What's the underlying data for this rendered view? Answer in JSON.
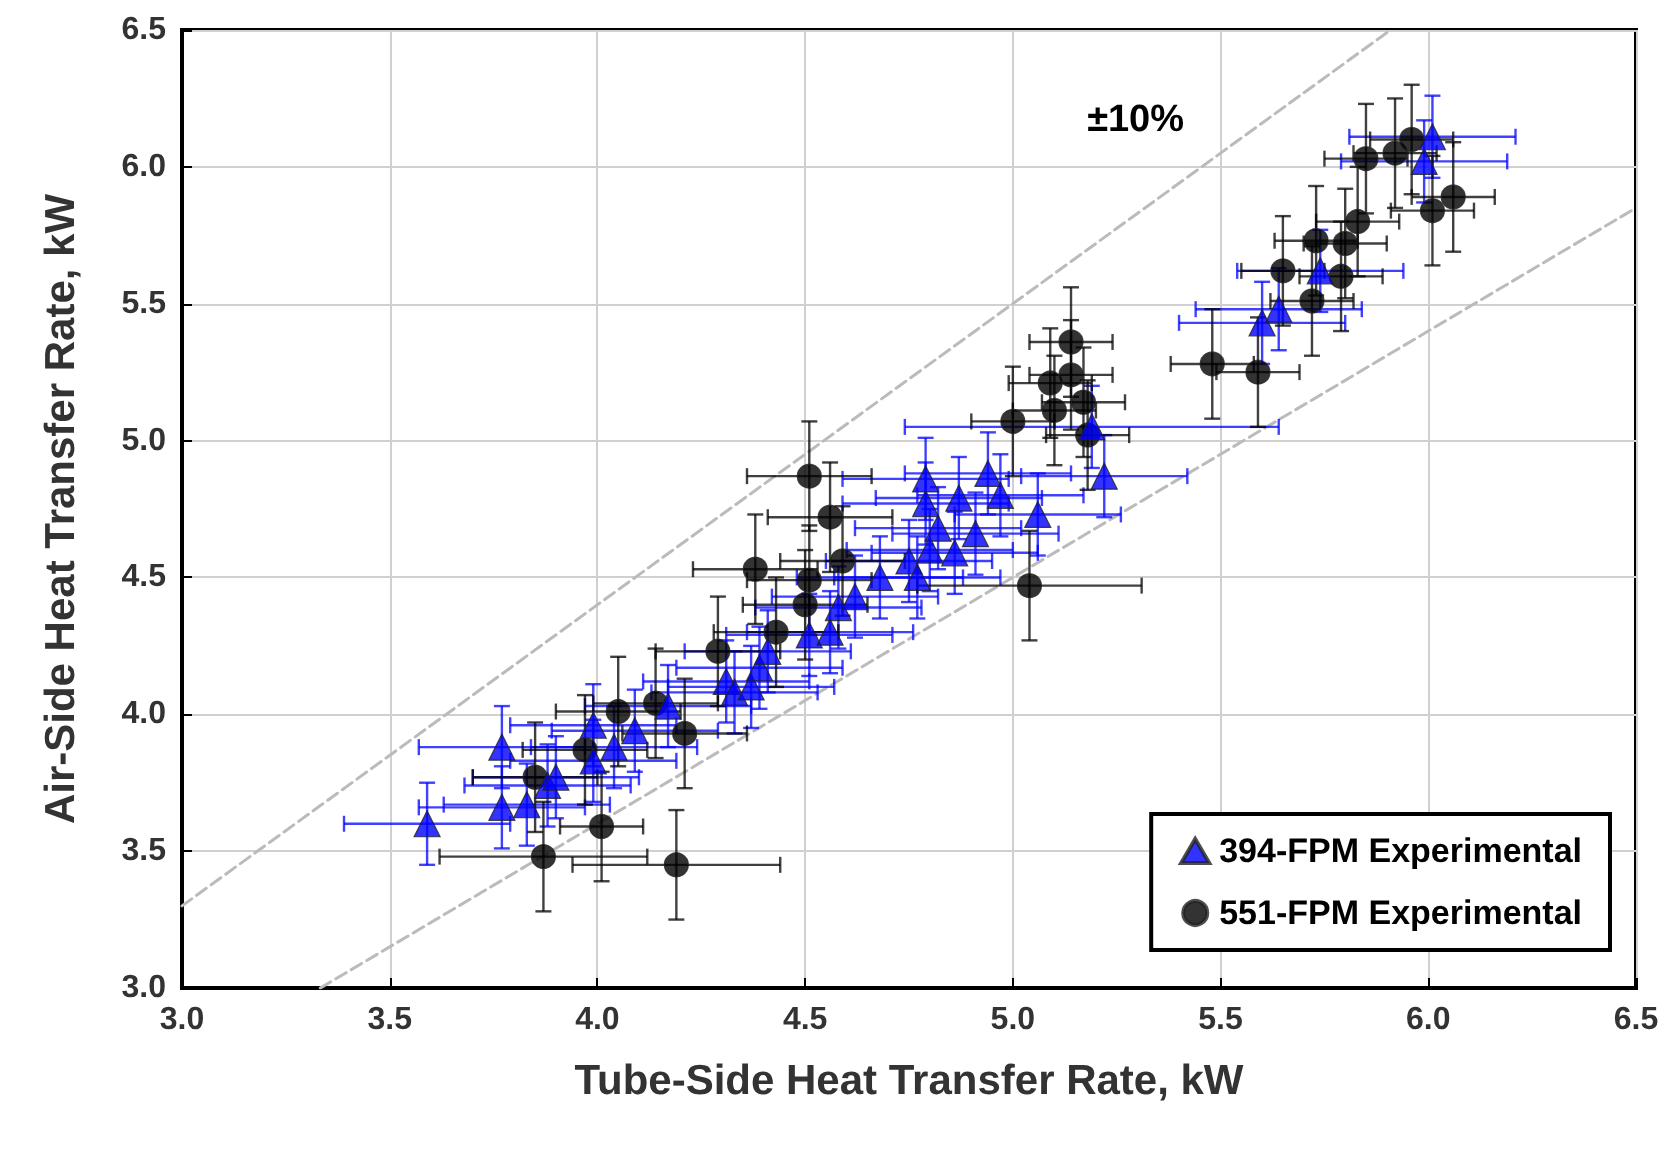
{
  "chart_data": {
    "type": "scatter",
    "xlabel": "Tube-Side Heat Transfer Rate, kW",
    "ylabel": "Air-Side Heat Transfer Rate, kW",
    "xlim": [
      3.0,
      6.5
    ],
    "ylim": [
      3.0,
      6.5
    ],
    "xticks": [
      {
        "value": 3,
        "label": "3.0"
      },
      {
        "value": 3.5,
        "label": "3.5"
      },
      {
        "value": 4,
        "label": "4.0"
      },
      {
        "value": 4.5,
        "label": "4.5"
      },
      {
        "value": 5,
        "label": "5.0"
      },
      {
        "value": 5.5,
        "label": "5.5"
      },
      {
        "value": 6,
        "label": "6.0"
      },
      {
        "value": 6.5,
        "label": "6.5"
      }
    ],
    "yticks": [
      {
        "value": 3,
        "label": "3.0"
      },
      {
        "value": 3.5,
        "label": "3.5"
      },
      {
        "value": 4,
        "label": "4.0"
      },
      {
        "value": 4.5,
        "label": "4.5"
      },
      {
        "value": 5,
        "label": "5.0"
      },
      {
        "value": 5.5,
        "label": "5.5"
      },
      {
        "value": 6,
        "label": "6.0"
      },
      {
        "value": 6.5,
        "label": "6.5"
      }
    ],
    "grid": true,
    "legend": "bottom right",
    "annotations": [
      "±10%"
    ],
    "series": [
      {
        "type": "line",
        "color": "#bbbbbb",
        "line_style": "dashed",
        "marker": "none",
        "x": [
          3.0,
          5.909
        ],
        "values": [
          3.3,
          6.5
        ]
      },
      {
        "type": "line",
        "color": "#bbbbbb",
        "line_style": "dashed",
        "marker": "none",
        "x": [
          3.333,
          6.5
        ],
        "values": [
          3.0,
          5.85
        ]
      },
      {
        "name": "394-FPM Experimental",
        "color": "#0000ff",
        "marker": "triangle",
        "x": [
          3.59,
          3.77,
          3.77,
          3.83,
          3.88,
          3.9,
          3.99,
          3.99,
          4.04,
          4.09,
          4.17,
          4.31,
          4.33,
          4.37,
          4.39,
          4.41,
          4.51,
          4.56,
          4.58,
          4.62,
          4.68,
          4.75,
          4.77,
          4.8,
          4.82,
          4.86,
          4.91,
          4.79,
          4.79,
          4.87,
          4.94,
          4.97,
          5.06,
          5.19,
          5.22,
          5.6,
          5.64,
          5.74,
          5.99,
          6.01
        ],
        "values": [
          3.6,
          3.88,
          3.66,
          3.67,
          3.74,
          3.77,
          3.96,
          3.83,
          3.88,
          3.94,
          4.03,
          4.12,
          4.08,
          4.1,
          4.17,
          4.23,
          4.29,
          4.3,
          4.39,
          4.43,
          4.5,
          4.56,
          4.5,
          4.6,
          4.68,
          4.59,
          4.66,
          4.77,
          4.86,
          4.79,
          4.88,
          4.8,
          4.73,
          5.05,
          4.87,
          5.43,
          5.48,
          5.62,
          6.02,
          6.11
        ],
        "errors": [
          0.15,
          0.15,
          0.15,
          0.15,
          0.15,
          0.15,
          0.15,
          0.15,
          0.15,
          0.15,
          0.15,
          0.15,
          0.15,
          0.15,
          0.15,
          0.15,
          0.15,
          0.15,
          0.15,
          0.15,
          0.15,
          0.15,
          0.15,
          0.15,
          0.15,
          0.15,
          0.15,
          0.15,
          0.15,
          0.15,
          0.15,
          0.15,
          0.15,
          0.15,
          0.15,
          0.15,
          0.15,
          0.15,
          0.15,
          0.15
        ],
        "xerrors": [
          0.2,
          0.2,
          0.2,
          0.2,
          0.2,
          0.2,
          0.2,
          0.2,
          0.2,
          0.2,
          0.2,
          0.2,
          0.2,
          0.2,
          0.2,
          0.2,
          0.2,
          0.2,
          0.2,
          0.2,
          0.2,
          0.2,
          0.2,
          0.2,
          0.2,
          0.2,
          0.2,
          0.2,
          0.2,
          0.2,
          0.2,
          0.2,
          0.2,
          0.45,
          0.2,
          0.2,
          0.2,
          0.2,
          0.2,
          0.2
        ]
      },
      {
        "name": "551-FPM Experimental",
        "color": "#000000",
        "marker": "circle",
        "x": [
          3.87,
          4.01,
          4.19,
          3.85,
          3.97,
          4.05,
          4.14,
          4.21,
          4.29,
          4.43,
          4.5,
          4.51,
          4.59,
          4.38,
          4.56,
          4.51,
          5.04,
          5.0,
          5.1,
          5.18,
          5.09,
          5.14,
          5.17,
          5.14,
          5.48,
          5.59,
          5.65,
          5.72,
          5.73,
          5.79,
          5.8,
          5.83,
          5.85,
          5.92,
          5.96,
          6.01,
          6.06
        ],
        "values": [
          3.48,
          3.59,
          3.45,
          3.77,
          3.87,
          4.01,
          4.04,
          3.93,
          4.23,
          4.3,
          4.4,
          4.49,
          4.56,
          4.53,
          4.72,
          4.87,
          4.47,
          5.07,
          5.11,
          5.02,
          5.21,
          5.24,
          5.14,
          5.36,
          5.28,
          5.25,
          5.62,
          5.51,
          5.73,
          5.6,
          5.72,
          5.8,
          6.03,
          6.05,
          6.1,
          5.84,
          5.89
        ],
        "errors": [
          0.2,
          0.2,
          0.2,
          0.2,
          0.2,
          0.2,
          0.2,
          0.2,
          0.2,
          0.2,
          0.2,
          0.2,
          0.2,
          0.2,
          0.2,
          0.2,
          0.2,
          0.2,
          0.2,
          0.2,
          0.2,
          0.2,
          0.2,
          0.2,
          0.2,
          0.2,
          0.2,
          0.2,
          0.2,
          0.2,
          0.2,
          0.2,
          0.2,
          0.2,
          0.2,
          0.2,
          0.2
        ],
        "xerrors": [
          0.25,
          0.1,
          0.25,
          0.15,
          0.15,
          0.15,
          0.15,
          0.15,
          0.15,
          0.15,
          0.15,
          0.15,
          0.15,
          0.15,
          0.15,
          0.15,
          0.27,
          0.1,
          0.1,
          0.1,
          0.1,
          0.1,
          0.1,
          0.1,
          0.1,
          0.1,
          0.1,
          0.1,
          0.1,
          0.1,
          0.1,
          0.1,
          0.1,
          0.1,
          0.1,
          0.1,
          0.1
        ]
      }
    ]
  }
}
